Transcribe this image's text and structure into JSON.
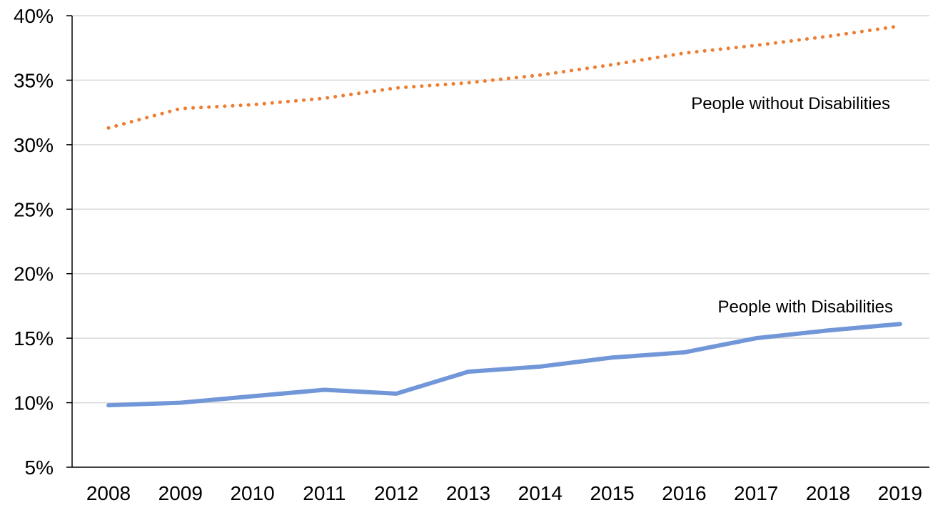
{
  "chart_data": {
    "type": "line",
    "title": "",
    "xlabel": "",
    "ylabel": "",
    "categories": [
      "2008",
      "2009",
      "2010",
      "2011",
      "2012",
      "2013",
      "2014",
      "2015",
      "2016",
      "2017",
      "2018",
      "2019"
    ],
    "ylim": [
      5,
      40
    ],
    "yticks": [
      5,
      10,
      15,
      20,
      25,
      30,
      35,
      40
    ],
    "ytick_labels": [
      "5%",
      "10%",
      "15%",
      "20%",
      "25%",
      "30%",
      "35%",
      "40%"
    ],
    "grid": "horizontal",
    "legend": "none",
    "series": [
      {
        "name": "People without Disabilities",
        "values": [
          31.3,
          32.8,
          33.1,
          33.6,
          34.4,
          34.8,
          35.4,
          36.2,
          37.1,
          37.7,
          38.4,
          39.2
        ],
        "color": "#ED7D31",
        "style": "dotted"
      },
      {
        "name": "People with Disabilities",
        "values": [
          9.8,
          10.0,
          10.5,
          11.0,
          10.7,
          12.4,
          12.8,
          13.5,
          13.9,
          15.0,
          15.6,
          16.1
        ],
        "color": "#7297D8",
        "style": "solid"
      }
    ]
  }
}
